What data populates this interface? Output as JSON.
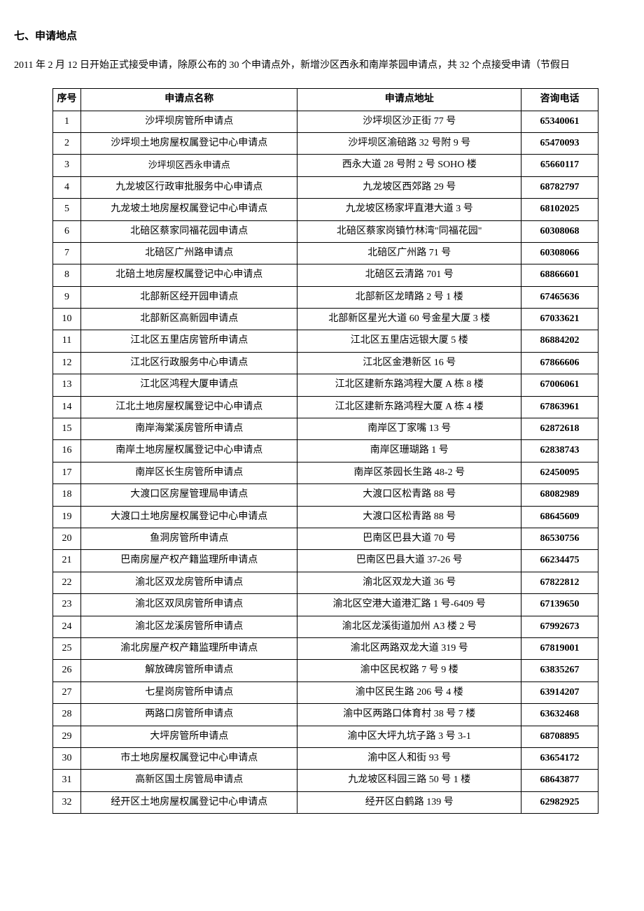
{
  "section_title": "七、申请地点",
  "intro_text": "2011 年 2 月 12 日开始正式接受申请，除原公布的 30 个申请点外，新增沙区西永和南岸茶园申请点，共 32 个点接受申请（节假日",
  "table": {
    "headers": {
      "seq": "序号",
      "name": "申请点名称",
      "addr": "申请点地址",
      "phone": "咨询电话"
    },
    "rows": [
      {
        "seq": "1",
        "name": "沙坪坝房管所申请点",
        "addr": "沙坪坝区沙正街 77 号",
        "phone": "65340061"
      },
      {
        "seq": "2",
        "name": "沙坪坝土地房屋权属登记中心申请点",
        "addr": "沙坪坝区渝碚路 32 号附 9 号",
        "phone": "65470093"
      },
      {
        "seq": "3",
        "name": "沙坪坝区西永申请点",
        "addr": "西永大道 28 号附 2 号 SOHO 楼",
        "phone": "65660117",
        "smaller": true
      },
      {
        "seq": "4",
        "name": "九龙坡区行政审批服务中心申请点",
        "addr": "九龙坡区西郊路 29 号",
        "phone": "68782797"
      },
      {
        "seq": "5",
        "name": "九龙坡土地房屋权属登记中心申请点",
        "addr": "九龙坡区杨家坪直港大道 3 号",
        "phone": "68102025"
      },
      {
        "seq": "6",
        "name": "北碚区蔡家同福花园申请点",
        "addr": "北碚区蔡家岗镇竹林湾\"同福花园\"",
        "phone": "60308068"
      },
      {
        "seq": "7",
        "name": "北碚区广州路申请点",
        "addr": "北碚区广州路 71 号",
        "phone": "60308066"
      },
      {
        "seq": "8",
        "name": "北碚土地房屋权属登记中心申请点",
        "addr": "北碚区云清路 701 号",
        "phone": "68866601"
      },
      {
        "seq": "9",
        "name": "北部新区经开园申请点",
        "addr": "北部新区龙晴路 2 号 1 楼",
        "phone": "67465636"
      },
      {
        "seq": "10",
        "name": "北部新区高新园申请点",
        "addr": "北部新区星光大道 60 号金星大厦 3 楼",
        "phone": "67033621"
      },
      {
        "seq": "11",
        "name": "江北区五里店房管所申请点",
        "addr": "江北区五里店远银大厦 5 楼",
        "phone": "86884202"
      },
      {
        "seq": "12",
        "name": "江北区行政服务中心申请点",
        "addr": "江北区金港新区 16 号",
        "phone": "67866606"
      },
      {
        "seq": "13",
        "name": "江北区鸿程大厦申请点",
        "addr": "江北区建新东路鸿程大厦 A 栋 8 楼",
        "phone": "67006061"
      },
      {
        "seq": "14",
        "name": "江北土地房屋权属登记中心申请点",
        "addr": "江北区建新东路鸿程大厦 A 栋 4 楼",
        "phone": "67863961"
      },
      {
        "seq": "15",
        "name": "南岸海棠溪房管所申请点",
        "addr": "南岸区丁家嘴 13 号",
        "phone": "62872618"
      },
      {
        "seq": "16",
        "name": "南岸土地房屋权属登记中心申请点",
        "addr": "南岸区珊瑚路 1 号",
        "phone": "62838743"
      },
      {
        "seq": "17",
        "name": "南岸区长生房管所申请点",
        "addr": "南岸区茶园长生路 48-2 号",
        "phone": "62450095"
      },
      {
        "seq": "18",
        "name": "大渡口区房屋管理局申请点",
        "addr": "大渡口区松青路 88 号",
        "phone": "68082989"
      },
      {
        "seq": "19",
        "name": "大渡口土地房屋权属登记中心申请点",
        "addr": "大渡口区松青路 88 号",
        "phone": "68645609"
      },
      {
        "seq": "20",
        "name": "鱼洞房管所申请点",
        "addr": "巴南区巴县大道 70 号",
        "phone": "86530756"
      },
      {
        "seq": "21",
        "name": "巴南房屋产权产籍监理所申请点",
        "addr": "巴南区巴县大道 37-26 号",
        "phone": "66234475"
      },
      {
        "seq": "22",
        "name": "渝北区双龙房管所申请点",
        "addr": "渝北区双龙大道 36 号",
        "phone": "67822812"
      },
      {
        "seq": "23",
        "name": "渝北区双凤房管所申请点",
        "addr": "渝北区空港大道港汇路 1 号-6409 号",
        "phone": "67139650"
      },
      {
        "seq": "24",
        "name": "渝北区龙溪房管所申请点",
        "addr": "渝北区龙溪街道加州 A3 楼 2 号",
        "phone": "67992673"
      },
      {
        "seq": "25",
        "name": "渝北房屋产权产籍监理所申请点",
        "addr": "渝北区两路双龙大道 319 号",
        "phone": "67819001"
      },
      {
        "seq": "26",
        "name": "解放碑房管所申请点",
        "addr": "渝中区民权路 7 号 9 楼",
        "phone": "63835267"
      },
      {
        "seq": "27",
        "name": "七星岗房管所申请点",
        "addr": "渝中区民生路 206 号 4 楼",
        "phone": "63914207"
      },
      {
        "seq": "28",
        "name": "两路口房管所申请点",
        "addr": "渝中区两路口体育村 38 号 7 楼",
        "phone": "63632468"
      },
      {
        "seq": "29",
        "name": "大坪房管所申请点",
        "addr": "渝中区大坪九坑子路 3 号 3-1",
        "phone": "68708895"
      },
      {
        "seq": "30",
        "name": "市土地房屋权属登记中心申请点",
        "addr": "渝中区人和街 93 号",
        "phone": "63654172"
      },
      {
        "seq": "31",
        "name": "高新区国土房管局申请点",
        "addr": "九龙坡区科园三路 50 号 1 楼",
        "phone": "68643877"
      },
      {
        "seq": "32",
        "name": "经开区土地房屋权属登记中心申请点",
        "addr": "经开区白鹤路 139 号",
        "phone": "62982925"
      }
    ]
  }
}
